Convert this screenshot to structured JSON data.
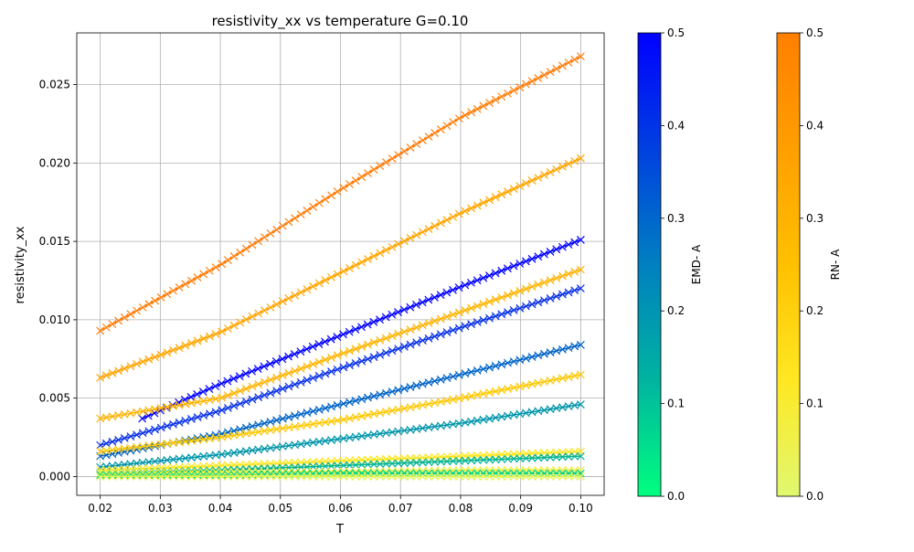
{
  "chart_data": {
    "type": "line",
    "title": "resistivity_xx vs temperature G=0.10",
    "xlabel": "T",
    "ylabel": "resistivity_xx",
    "xlim": [
      0.0161,
      0.1039
    ],
    "ylim": [
      -0.0012,
      0.0283
    ],
    "x_ticks": [
      "0.02",
      "0.03",
      "0.04",
      "0.05",
      "0.06",
      "0.07",
      "0.08",
      "0.09",
      "0.10"
    ],
    "y_ticks": [
      "0.000",
      "0.005",
      "0.010",
      "0.015",
      "0.020",
      "0.025"
    ],
    "grid": true,
    "marker": "x",
    "series": [
      {
        "color": "#ff7f0e",
        "x": [
          0.02,
          0.04,
          0.06,
          0.08,
          0.1
        ],
        "y": [
          0.0093,
          0.0135,
          0.0183,
          0.0229,
          0.0268
        ]
      },
      {
        "color": "#ffa500",
        "x": [
          0.02,
          0.04,
          0.06,
          0.08,
          0.1
        ],
        "y": [
          0.0063,
          0.0092,
          0.013,
          0.0168,
          0.0203
        ]
      },
      {
        "color": "#0000ff",
        "x": [
          0.027,
          0.04,
          0.06,
          0.08,
          0.1
        ],
        "y": [
          0.0037,
          0.0059,
          0.009,
          0.0121,
          0.0151
        ]
      },
      {
        "color": "#ffb400",
        "x": [
          0.02,
          0.04,
          0.06,
          0.08,
          0.1
        ],
        "y": [
          0.0037,
          0.005,
          0.0078,
          0.0105,
          0.0132
        ]
      },
      {
        "color": "#0a32e6",
        "x": [
          0.02,
          0.04,
          0.06,
          0.08,
          0.1
        ],
        "y": [
          0.002,
          0.0042,
          0.0069,
          0.0095,
          0.012
        ]
      },
      {
        "color": "#0064c8",
        "x": [
          0.02,
          0.04,
          0.06,
          0.08,
          0.1
        ],
        "y": [
          0.0013,
          0.0027,
          0.0046,
          0.0065,
          0.0084
        ]
      },
      {
        "color": "#ffc800",
        "x": [
          0.02,
          0.04,
          0.06,
          0.08,
          0.1
        ],
        "y": [
          0.0016,
          0.0025,
          0.0036,
          0.005,
          0.0065
        ]
      },
      {
        "color": "#0096aa",
        "x": [
          0.02,
          0.04,
          0.06,
          0.08,
          0.1
        ],
        "y": [
          0.0006,
          0.0014,
          0.0024,
          0.0034,
          0.0046
        ]
      },
      {
        "color": "#ffe61e",
        "x": [
          0.02,
          0.04,
          0.06,
          0.08,
          0.1
        ],
        "y": [
          0.0004,
          0.0007,
          0.001,
          0.0013,
          0.0016
        ]
      },
      {
        "color": "#00b496",
        "x": [
          0.02,
          0.04,
          0.06,
          0.08,
          0.1
        ],
        "y": [
          0.0002,
          0.0004,
          0.0007,
          0.001,
          0.0013
        ]
      },
      {
        "color": "#f0f040",
        "x": [
          0.02,
          0.04,
          0.06,
          0.08,
          0.1
        ],
        "y": [
          0.0002,
          0.0003,
          0.0003,
          0.0004,
          0.0004
        ]
      },
      {
        "color": "#00d282",
        "x": [
          0.02,
          0.04,
          0.06,
          0.08,
          0.1
        ],
        "y": [
          0.0001,
          0.0001,
          0.0002,
          0.0002,
          0.0002
        ]
      },
      {
        "color": "#e6f550",
        "x": [
          0.02,
          0.04,
          0.06,
          0.08,
          0.1
        ],
        "y": [
          0.0,
          0.0,
          0.0,
          0.0,
          0.0
        ]
      }
    ],
    "colorbars": [
      {
        "label": "EMD- A",
        "range": [
          0.0,
          0.5
        ],
        "ticks": [
          "0.0",
          "0.1",
          "0.2",
          "0.3",
          "0.4",
          "0.5"
        ],
        "colors": [
          "#00ff7f",
          "#00b4a0",
          "#0080c0",
          "#0040e0",
          "#0000ff"
        ]
      },
      {
        "label": "RN- A",
        "range": [
          0.0,
          0.5
        ],
        "ticks": [
          "0.0",
          "0.1",
          "0.2",
          "0.3",
          "0.4",
          "0.5"
        ],
        "colors": [
          "#e0f870",
          "#ffe822",
          "#ffc000",
          "#ff9f00",
          "#ff7f00"
        ]
      }
    ]
  }
}
